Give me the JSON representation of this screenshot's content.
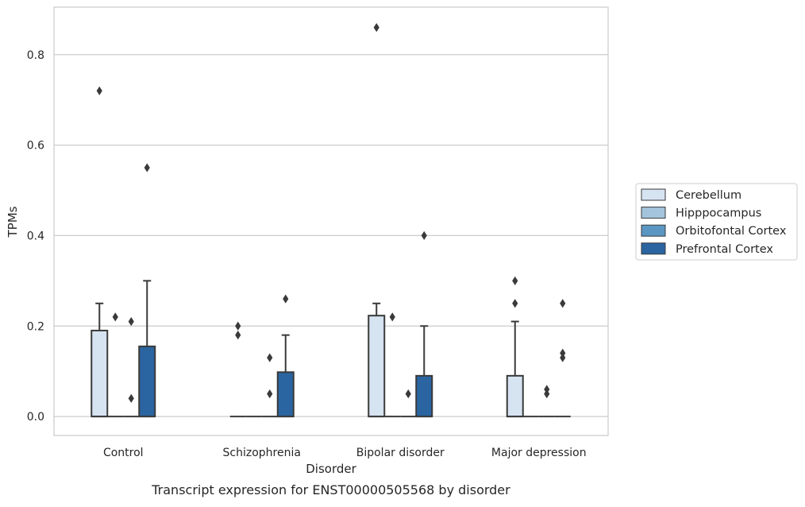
{
  "caption": "Transcript expression for ENST00000505568 by disorder",
  "chart_data": {
    "type": "box",
    "xlabel": "Disorder",
    "ylabel": "TPMs",
    "ylim": [
      -0.042,
      0.905
    ],
    "yticks": [
      0.0,
      0.2,
      0.4,
      0.6,
      0.8
    ],
    "ytick_labels": [
      "0.0",
      "0.2",
      "0.4",
      "0.6",
      "0.8"
    ],
    "grid": "horizontal",
    "legend_position": "right",
    "categories": [
      "Control",
      "Schizophrenia",
      "Bipolar disorder",
      "Major depression"
    ],
    "series": [
      {
        "name": "Cerebellum",
        "color": "#d6e3f1",
        "boxes": [
          {
            "q1": 0.0,
            "median": 0.0,
            "q3": 0.19,
            "whisker_low": 0.0,
            "whisker_high": 0.25,
            "outliers": [
              0.72
            ]
          },
          {
            "q1": 0.0,
            "median": 0.0,
            "q3": 0.0,
            "whisker_low": 0.0,
            "whisker_high": 0.0,
            "outliers": [
              0.18,
              0.2
            ]
          },
          {
            "q1": 0.0,
            "median": 0.0,
            "q3": 0.223,
            "whisker_low": 0.0,
            "whisker_high": 0.25,
            "outliers": [
              0.86
            ]
          },
          {
            "q1": 0.0,
            "median": 0.0,
            "q3": 0.09,
            "whisker_low": 0.0,
            "whisker_high": 0.21,
            "outliers": [
              0.25,
              0.3
            ]
          }
        ]
      },
      {
        "name": "Hipppocampus",
        "color": "#a3c4dc",
        "boxes": [
          {
            "q1": 0.0,
            "median": 0.0,
            "q3": 0.0,
            "whisker_low": 0.0,
            "whisker_high": 0.0,
            "outliers": [
              0.22
            ]
          },
          {
            "q1": 0.0,
            "median": 0.0,
            "q3": 0.0,
            "whisker_low": 0.0,
            "whisker_high": 0.0,
            "outliers": []
          },
          {
            "q1": 0.0,
            "median": 0.0,
            "q3": 0.0,
            "whisker_low": 0.0,
            "whisker_high": 0.0,
            "outliers": [
              0.22
            ]
          },
          {
            "q1": 0.0,
            "median": 0.0,
            "q3": 0.0,
            "whisker_low": 0.0,
            "whisker_high": 0.0,
            "outliers": []
          }
        ]
      },
      {
        "name": "Orbitofontal Cortex",
        "color": "#5a96c2",
        "boxes": [
          {
            "q1": 0.0,
            "median": 0.0,
            "q3": 0.0,
            "whisker_low": 0.0,
            "whisker_high": 0.0,
            "outliers": [
              0.04,
              0.21
            ]
          },
          {
            "q1": 0.0,
            "median": 0.0,
            "q3": 0.0,
            "whisker_low": 0.0,
            "whisker_high": 0.0,
            "outliers": [
              0.05,
              0.13
            ]
          },
          {
            "q1": 0.0,
            "median": 0.0,
            "q3": 0.0,
            "whisker_low": 0.0,
            "whisker_high": 0.0,
            "outliers": [
              0.05
            ]
          },
          {
            "q1": 0.0,
            "median": 0.0,
            "q3": 0.0,
            "whisker_low": 0.0,
            "whisker_high": 0.0,
            "outliers": [
              0.05,
              0.06
            ]
          }
        ]
      },
      {
        "name": "Prefrontal Cortex",
        "color": "#2a65a1",
        "boxes": [
          {
            "q1": 0.0,
            "median": 0.0,
            "q3": 0.155,
            "whisker_low": 0.0,
            "whisker_high": 0.3,
            "outliers": [
              0.55
            ]
          },
          {
            "q1": 0.0,
            "median": 0.0,
            "q3": 0.098,
            "whisker_low": 0.0,
            "whisker_high": 0.18,
            "outliers": [
              0.26
            ]
          },
          {
            "q1": 0.0,
            "median": 0.0,
            "q3": 0.09,
            "whisker_low": 0.0,
            "whisker_high": 0.2,
            "outliers": [
              0.4
            ]
          },
          {
            "q1": 0.0,
            "median": 0.0,
            "q3": 0.0,
            "whisker_low": 0.0,
            "whisker_high": 0.0,
            "outliers": [
              0.13,
              0.14,
              0.25
            ]
          }
        ]
      }
    ]
  }
}
